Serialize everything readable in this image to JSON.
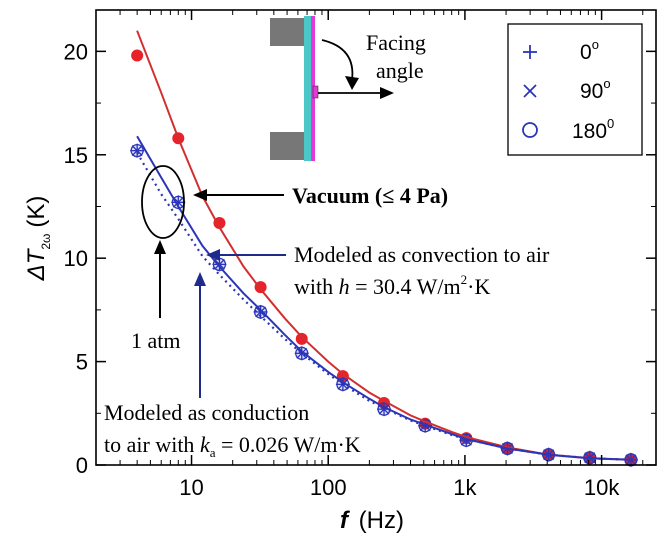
{
  "chart_data": {
    "type": "scatter",
    "x_scale": "log",
    "xlim": [
      2,
      25000
    ],
    "ylim": [
      0,
      22
    ],
    "xlabel_var": "f",
    "xlabel_unit": "(Hz)",
    "ylabel_prefix": "ΔT",
    "ylabel_sub": "2ω",
    "ylabel_unit": "(K)",
    "x_ticks": [
      {
        "value": 10,
        "label": "10"
      },
      {
        "value": 100,
        "label": "100"
      },
      {
        "value": 1000,
        "label": "1k"
      },
      {
        "value": 10000,
        "label": "10k"
      }
    ],
    "y_ticks": [
      {
        "value": 0,
        "label": "0"
      },
      {
        "value": 5,
        "label": "5"
      },
      {
        "value": 10,
        "label": "10"
      },
      {
        "value": 15,
        "label": "15"
      },
      {
        "value": 20,
        "label": "20"
      }
    ],
    "legend": {
      "placement": "top-right",
      "entries": [
        {
          "marker": "plus",
          "label": "0",
          "sup": "o"
        },
        {
          "marker": "cross",
          "label": "90",
          "sup": "o"
        },
        {
          "marker": "circle",
          "label": "180",
          "sup": "0"
        }
      ]
    },
    "series": [
      {
        "kind": "points",
        "marker": "filled-circle",
        "color": "#e8212a",
        "x": [
          4,
          8,
          16,
          32,
          64,
          128,
          256,
          512,
          1024,
          2048,
          4096,
          8192,
          16384
        ],
        "y": [
          19.8,
          15.8,
          11.7,
          8.6,
          6.1,
          4.3,
          3.0,
          2.0,
          1.3,
          0.8,
          0.5,
          0.35,
          0.25
        ]
      },
      {
        "kind": "points",
        "marker": "circle-cross",
        "color": "#2b35b8",
        "x": [
          4,
          8,
          16,
          32,
          64,
          128,
          256,
          512,
          1024,
          2048,
          4096,
          8192,
          16384
        ],
        "y": [
          15.2,
          12.7,
          9.7,
          7.4,
          5.4,
          3.9,
          2.7,
          1.9,
          1.2,
          0.8,
          0.5,
          0.35,
          0.25
        ]
      },
      {
        "kind": "line",
        "style": "solid",
        "color": "#d32f2f",
        "x": [
          4,
          6,
          8,
          12,
          16,
          24,
          32,
          48,
          64,
          100,
          128,
          200,
          256,
          400,
          512,
          800,
          1024,
          2048,
          4096,
          8192,
          16384
        ],
        "y": [
          21.0,
          18.0,
          15.8,
          13.0,
          11.5,
          9.6,
          8.5,
          7.1,
          6.2,
          5.0,
          4.4,
          3.5,
          3.1,
          2.4,
          2.1,
          1.6,
          1.35,
          0.85,
          0.5,
          0.33,
          0.25
        ]
      },
      {
        "kind": "line",
        "style": "solid",
        "color": "#2b35b8",
        "x": [
          4,
          6,
          8,
          12,
          16,
          24,
          32,
          48,
          64,
          100,
          128,
          200,
          256,
          400,
          512,
          800,
          1024,
          2048,
          4096,
          8192,
          16384
        ],
        "y": [
          15.9,
          13.9,
          12.5,
          10.6,
          9.6,
          8.3,
          7.5,
          6.3,
          5.5,
          4.5,
          4.0,
          3.2,
          2.8,
          2.2,
          1.95,
          1.5,
          1.25,
          0.8,
          0.5,
          0.33,
          0.25
        ]
      },
      {
        "kind": "line",
        "style": "dotted",
        "color": "#2b35b8",
        "x": [
          4,
          6,
          8,
          12,
          16,
          24,
          32,
          48,
          64,
          100,
          128,
          200,
          256,
          400,
          512,
          800,
          1024,
          2048,
          4096,
          8192,
          16384
        ],
        "y": [
          15.1,
          13.1,
          11.9,
          10.1,
          9.2,
          8.0,
          7.2,
          6.1,
          5.4,
          4.4,
          3.9,
          3.1,
          2.75,
          2.15,
          1.9,
          1.45,
          1.25,
          0.8,
          0.5,
          0.33,
          0.25
        ]
      }
    ],
    "annotations": {
      "facing_angle": "Facing\nangle",
      "vacuum": "Vacuum (≤ 4 Pa)",
      "atm": "1 atm",
      "convection_line1": "Modeled as convection to air",
      "convection_line2_prefix": "with ",
      "convection_h": "h",
      "convection_line2_value": " = 30.4 W/m",
      "convection_sup": "2",
      "convection_tail": "·K",
      "conduction_line1": "Modeled as conduction",
      "conduction_line2_prefix": "to air with ",
      "conduction_k": "k",
      "conduction_sub": "a",
      "conduction_value": " = 0.026 W/m·K"
    }
  }
}
